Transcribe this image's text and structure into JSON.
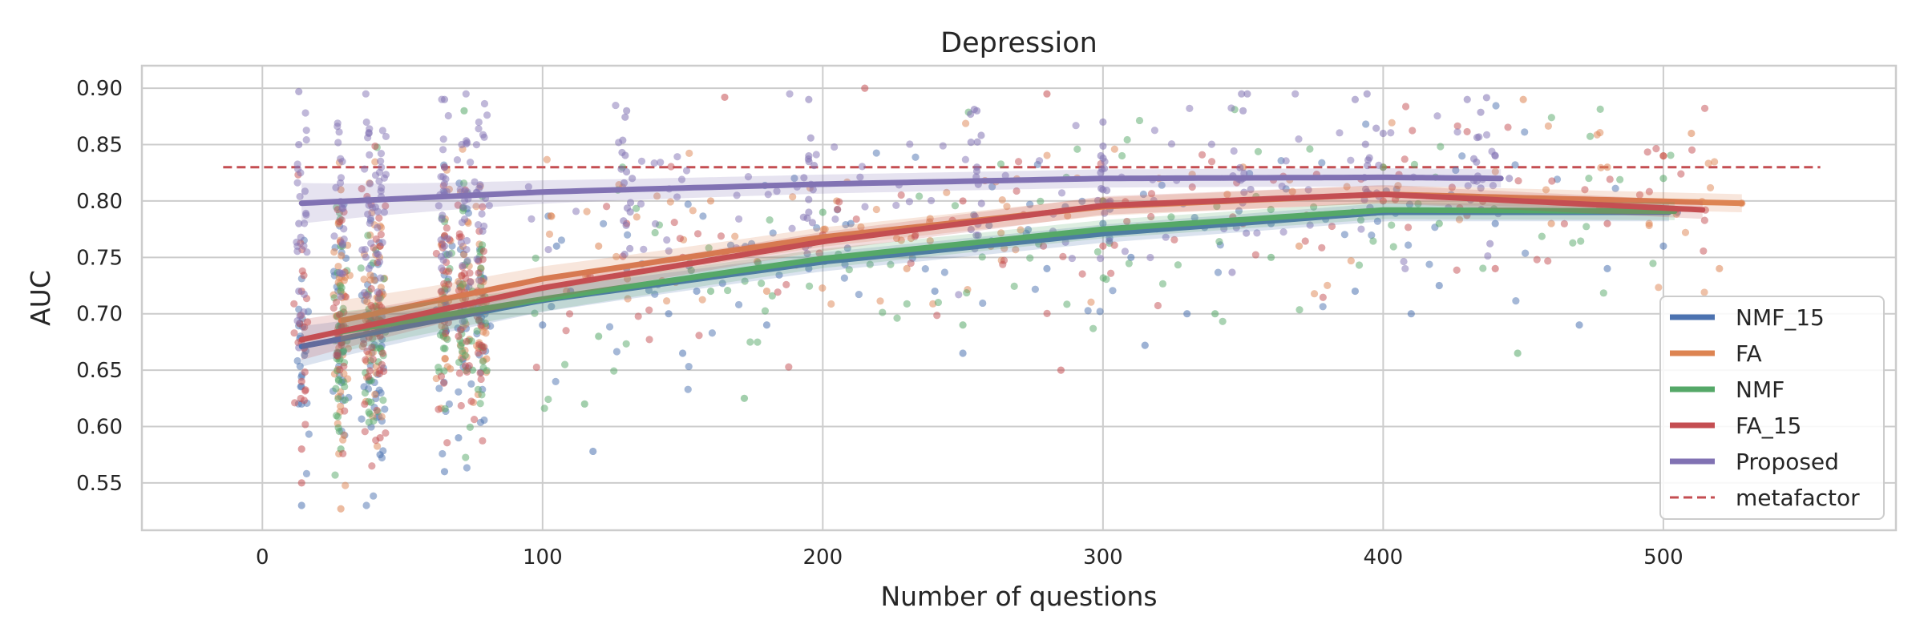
{
  "chart_data": {
    "type": "scatter",
    "title": "Depression",
    "xlabel": "Number of questions",
    "ylabel": "AUC",
    "xlim": [
      -43,
      583
    ],
    "ylim": [
      0.508,
      0.92
    ],
    "xticks": [
      0,
      100,
      200,
      300,
      400,
      500
    ],
    "xtick_labels": [
      "0",
      "100",
      "200",
      "300",
      "400",
      "500"
    ],
    "yticks": [
      0.55,
      0.6,
      0.65,
      0.7,
      0.75,
      0.8,
      0.85,
      0.9
    ],
    "ytick_labels": [
      "0.55",
      "0.60",
      "0.65",
      "0.70",
      "0.75",
      "0.80",
      "0.85",
      "0.90"
    ],
    "grid": true,
    "legend_position": "lower-right",
    "reference_line": {
      "name": "metafactor",
      "value": 0.83,
      "x_range": [
        -14,
        556
      ],
      "color": "#c44e52",
      "style": "dashed"
    },
    "series": [
      {
        "name": "NMF_15",
        "color": "#4c72b0",
        "x_range": [
          14,
          505
        ],
        "trend": [
          [
            14,
            0.671
          ],
          [
            100,
            0.712
          ],
          [
            200,
            0.746
          ],
          [
            300,
            0.771
          ],
          [
            400,
            0.79
          ],
          [
            505,
            0.79
          ]
        ],
        "points": [
          [
            14,
            0.53
          ],
          [
            14,
            0.62
          ],
          [
            38,
            0.64
          ],
          [
            38,
            0.7
          ],
          [
            42,
            0.575
          ],
          [
            42,
            0.69
          ],
          [
            65,
            0.56
          ],
          [
            65,
            0.7
          ],
          [
            70,
            0.59
          ],
          [
            100,
            0.69
          ],
          [
            105,
            0.76
          ],
          [
            110,
            0.72
          ],
          [
            118,
            0.578
          ],
          [
            130,
            0.74
          ],
          [
            145,
            0.7
          ],
          [
            150,
            0.665
          ],
          [
            155,
            0.72
          ],
          [
            180,
            0.69
          ],
          [
            195,
            0.74
          ],
          [
            210,
            0.78
          ],
          [
            240,
            0.72
          ],
          [
            250,
            0.665
          ],
          [
            280,
            0.74
          ],
          [
            300,
            0.78
          ],
          [
            310,
            0.75
          ],
          [
            315,
            0.672
          ],
          [
            330,
            0.7
          ],
          [
            360,
            0.78
          ],
          [
            390,
            0.72
          ],
          [
            410,
            0.7
          ],
          [
            420,
            0.725
          ],
          [
            440,
            0.78
          ],
          [
            470,
            0.69
          ],
          [
            480,
            0.74
          ],
          [
            500,
            0.76
          ],
          [
            505,
            0.79
          ]
        ]
      },
      {
        "name": "FA",
        "color": "#dd8452",
        "x_range": [
          28,
          528
        ],
        "trend": [
          [
            28,
            0.694
          ],
          [
            100,
            0.731
          ],
          [
            200,
            0.768
          ],
          [
            300,
            0.795
          ],
          [
            400,
            0.806
          ],
          [
            528,
            0.798
          ]
        ],
        "points": [
          [
            28,
            0.527
          ],
          [
            28,
            0.81
          ],
          [
            42,
            0.76
          ],
          [
            78,
            0.74
          ],
          [
            80,
            0.66
          ],
          [
            120,
            0.76
          ],
          [
            160,
            0.8
          ],
          [
            180,
            0.72
          ],
          [
            205,
            0.8
          ],
          [
            230,
            0.74
          ],
          [
            260,
            0.76
          ],
          [
            300,
            0.8
          ],
          [
            320,
            0.82
          ],
          [
            350,
            0.83
          ],
          [
            370,
            0.76
          ],
          [
            400,
            0.83
          ],
          [
            450,
            0.89
          ],
          [
            460,
            0.78
          ],
          [
            480,
            0.83
          ],
          [
            500,
            0.84
          ],
          [
            510,
            0.86
          ],
          [
            520,
            0.74
          ],
          [
            528,
            0.798
          ]
        ]
      },
      {
        "name": "NMF",
        "color": "#55a868",
        "x_range": [
          28,
          505
        ],
        "trend": [
          [
            28,
            0.684
          ],
          [
            100,
            0.713
          ],
          [
            200,
            0.749
          ],
          [
            300,
            0.775
          ],
          [
            400,
            0.792
          ],
          [
            505,
            0.791
          ]
        ],
        "points": [
          [
            28,
            0.58
          ],
          [
            28,
            0.7
          ],
          [
            28,
            0.76
          ],
          [
            72,
            0.88
          ],
          [
            75,
            0.65
          ],
          [
            75,
            0.72
          ],
          [
            115,
            0.62
          ],
          [
            120,
            0.68
          ],
          [
            160,
            0.72
          ],
          [
            172,
            0.625
          ],
          [
            200,
            0.79
          ],
          [
            250,
            0.69
          ],
          [
            300,
            0.8
          ],
          [
            340,
            0.7
          ],
          [
            360,
            0.75
          ],
          [
            400,
            0.83
          ],
          [
            420,
            0.78
          ],
          [
            448,
            0.665
          ],
          [
            470,
            0.8
          ],
          [
            500,
            0.82
          ]
        ]
      },
      {
        "name": "FA_15",
        "color": "#c44e52",
        "x_range": [
          14,
          515
        ],
        "trend": [
          [
            14,
            0.677
          ],
          [
            100,
            0.723
          ],
          [
            200,
            0.764
          ],
          [
            300,
            0.796
          ],
          [
            400,
            0.806
          ],
          [
            515,
            0.792
          ]
        ],
        "points": [
          [
            14,
            0.55
          ],
          [
            14,
            0.58
          ],
          [
            14,
            0.64
          ],
          [
            14,
            0.72
          ],
          [
            42,
            0.59
          ],
          [
            42,
            0.68
          ],
          [
            42,
            0.76
          ],
          [
            65,
            0.83
          ],
          [
            70,
            0.68
          ],
          [
            130,
            0.78
          ],
          [
            150,
            0.75
          ],
          [
            165,
            0.892
          ],
          [
            200,
            0.77
          ],
          [
            215,
            0.9
          ],
          [
            250,
            0.8
          ],
          [
            280,
            0.895
          ],
          [
            285,
            0.65
          ],
          [
            300,
            0.76
          ],
          [
            350,
            0.78
          ],
          [
            400,
            0.8
          ],
          [
            440,
            0.74
          ],
          [
            480,
            0.78
          ],
          [
            500,
            0.84
          ],
          [
            515,
            0.792
          ]
        ]
      },
      {
        "name": "Proposed",
        "color": "#8172b3",
        "x_range": [
          14,
          445
        ],
        "trend": [
          [
            14,
            0.798
          ],
          [
            100,
            0.808
          ],
          [
            200,
            0.815
          ],
          [
            300,
            0.82
          ],
          [
            400,
            0.821
          ],
          [
            445,
            0.82
          ]
        ],
        "points": [
          [
            13,
            0.897
          ],
          [
            13,
            0.85
          ],
          [
            13,
            0.78
          ],
          [
            13,
            0.72
          ],
          [
            13,
            0.67
          ],
          [
            38,
            0.86
          ],
          [
            38,
            0.8
          ],
          [
            38,
            0.74
          ],
          [
            65,
            0.89
          ],
          [
            65,
            0.83
          ],
          [
            65,
            0.76
          ],
          [
            130,
            0.88
          ],
          [
            132,
            0.82
          ],
          [
            195,
            0.89
          ],
          [
            195,
            0.84
          ],
          [
            195,
            0.79
          ],
          [
            255,
            0.88
          ],
          [
            255,
            0.83
          ],
          [
            300,
            0.87
          ],
          [
            300,
            0.81
          ],
          [
            350,
            0.88
          ],
          [
            350,
            0.82
          ],
          [
            390,
            0.89
          ],
          [
            400,
            0.86
          ],
          [
            430,
            0.89
          ],
          [
            440,
            0.84
          ],
          [
            445,
            0.82
          ]
        ]
      }
    ]
  }
}
